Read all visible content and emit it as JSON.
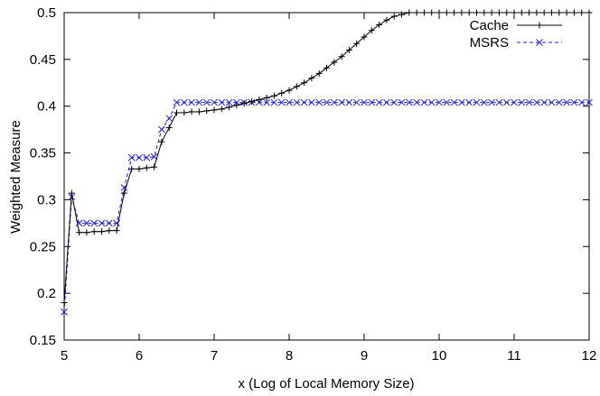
{
  "chart_data": {
    "type": "line",
    "title": "",
    "xlabel": "x (Log of Local Memory Size)",
    "ylabel": "Weighted Measure",
    "xlim": [
      5,
      12
    ],
    "ylim": [
      0.15,
      0.5
    ],
    "xticks": [
      "5",
      "6",
      "7",
      "8",
      "9",
      "10",
      "11",
      "12"
    ],
    "yticks": [
      "0.15",
      "0.2",
      "0.25",
      "0.3",
      "0.35",
      "0.4",
      "0.45",
      "0.5"
    ],
    "grid": false,
    "legend_position": "top-right",
    "series": [
      {
        "name": "Cache",
        "color": "#000000",
        "marker": "plus",
        "line_style": "solid",
        "x": [
          5.0,
          5.1,
          5.2,
          5.3,
          5.4,
          5.5,
          5.6,
          5.7,
          5.8,
          5.9,
          6.0,
          6.1,
          6.2,
          6.3,
          6.4,
          6.5,
          6.6,
          6.7,
          6.8,
          6.9,
          7.0,
          7.1,
          7.2,
          7.3,
          7.4,
          7.5,
          7.6,
          7.7,
          7.8,
          7.9,
          8.0,
          8.1,
          8.2,
          8.3,
          8.4,
          8.5,
          8.6,
          8.7,
          8.8,
          8.9,
          9.0,
          9.1,
          9.2,
          9.3,
          9.4,
          9.5,
          9.6,
          9.7,
          9.8,
          9.9,
          10.0,
          10.1,
          10.2,
          10.3,
          10.4,
          10.5,
          10.6,
          10.7,
          10.8,
          10.9,
          11.0,
          11.1,
          11.2,
          11.3,
          11.4,
          11.5,
          11.6,
          11.7,
          11.8,
          11.9,
          12.0
        ],
        "values": [
          0.19,
          0.307,
          0.265,
          0.265,
          0.266,
          0.266,
          0.267,
          0.267,
          0.307,
          0.333,
          0.333,
          0.334,
          0.335,
          0.362,
          0.377,
          0.393,
          0.393,
          0.394,
          0.394,
          0.395,
          0.396,
          0.397,
          0.399,
          0.401,
          0.403,
          0.405,
          0.407,
          0.409,
          0.411,
          0.414,
          0.417,
          0.421,
          0.425,
          0.43,
          0.435,
          0.441,
          0.447,
          0.453,
          0.46,
          0.467,
          0.474,
          0.481,
          0.487,
          0.492,
          0.496,
          0.498,
          0.5,
          0.5,
          0.5,
          0.5,
          0.5,
          0.5,
          0.5,
          0.5,
          0.5,
          0.5,
          0.5,
          0.5,
          0.5,
          0.5,
          0.5,
          0.5,
          0.5,
          0.5,
          0.5,
          0.5,
          0.5,
          0.5,
          0.5,
          0.5,
          0.5
        ]
      },
      {
        "name": "MSRS",
        "color": "#1f1fd6",
        "marker": "cross",
        "line_style": "dashed",
        "x": [
          5.0,
          5.1,
          5.2,
          5.3,
          5.4,
          5.5,
          5.6,
          5.7,
          5.8,
          5.9,
          6.0,
          6.1,
          6.2,
          6.3,
          6.4,
          6.5,
          6.6,
          6.7,
          6.8,
          6.9,
          7.0,
          7.1,
          7.2,
          7.3,
          7.4,
          7.5,
          7.6,
          7.7,
          7.8,
          7.9,
          8.0,
          8.1,
          8.2,
          8.3,
          8.4,
          8.5,
          8.6,
          8.7,
          8.8,
          8.9,
          9.0,
          9.1,
          9.2,
          9.3,
          9.4,
          9.5,
          9.6,
          9.7,
          9.8,
          9.9,
          10.0,
          10.1,
          10.2,
          10.3,
          10.4,
          10.5,
          10.6,
          10.7,
          10.8,
          10.9,
          11.0,
          11.1,
          11.2,
          11.3,
          11.4,
          11.5,
          11.6,
          11.7,
          11.8,
          11.9,
          12.0
        ],
        "values": [
          0.18,
          0.303,
          0.275,
          0.275,
          0.275,
          0.275,
          0.275,
          0.275,
          0.313,
          0.345,
          0.345,
          0.345,
          0.346,
          0.375,
          0.387,
          0.404,
          0.404,
          0.404,
          0.404,
          0.404,
          0.404,
          0.404,
          0.404,
          0.404,
          0.404,
          0.404,
          0.404,
          0.404,
          0.404,
          0.404,
          0.404,
          0.404,
          0.404,
          0.404,
          0.404,
          0.404,
          0.404,
          0.404,
          0.404,
          0.404,
          0.404,
          0.404,
          0.404,
          0.404,
          0.404,
          0.404,
          0.404,
          0.404,
          0.404,
          0.404,
          0.404,
          0.404,
          0.404,
          0.404,
          0.404,
          0.404,
          0.404,
          0.404,
          0.404,
          0.404,
          0.404,
          0.404,
          0.404,
          0.404,
          0.404,
          0.404,
          0.404,
          0.404,
          0.404,
          0.404,
          0.404
        ]
      }
    ]
  }
}
